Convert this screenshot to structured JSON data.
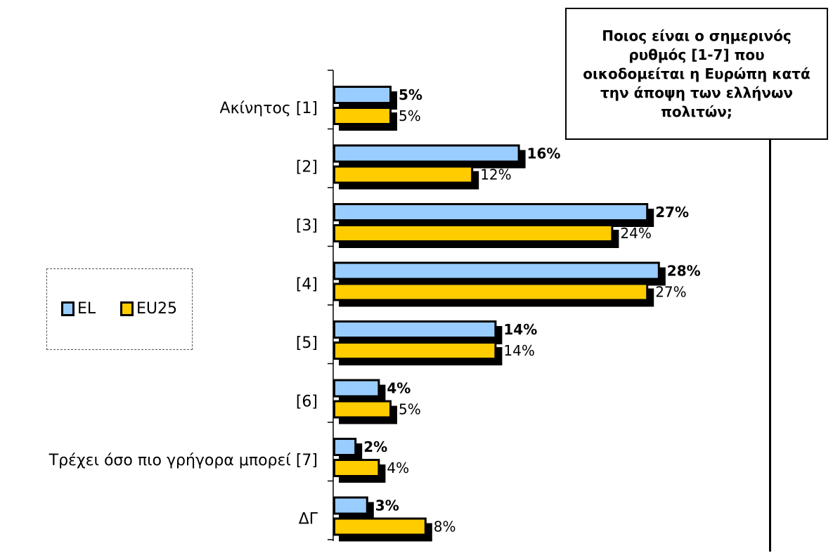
{
  "title": "Ποιος είναι ο σημερινός ρυθμός [1-7] που οικοδομείται η Ευρώπη κατά την άποψη των ελλήνων πολιτών;",
  "colors": {
    "EL": "#99ccff",
    "EU25": "#ffcc00",
    "outline": "#000000"
  },
  "legend": {
    "items": [
      "EL",
      "EU25"
    ],
    "position": "left-middle"
  },
  "chart_data": {
    "type": "bar",
    "orientation": "horizontal",
    "title": "Ποιος είναι ο σημερινός ρυθμός [1-7] που οικοδομείται η Ευρώπη κατά την άποψη των ελλήνων πολιτών;",
    "categories": [
      "Ακίνητος [1]",
      "[2]",
      "[3]",
      "[4]",
      "[5]",
      "[6]",
      "Τρέχει όσο πιο γρήγορα μπορεί [7]",
      "ΔΓ"
    ],
    "series": [
      {
        "name": "EL",
        "values": [
          5,
          16,
          27,
          28,
          14,
          4,
          2,
          3
        ],
        "labels": [
          "5%",
          "16%",
          "27%",
          "28%",
          "14%",
          "4%",
          "2%",
          "3%"
        ]
      },
      {
        "name": "EU25",
        "values": [
          5,
          12,
          24,
          27,
          14,
          5,
          4,
          8
        ],
        "labels": [
          "5%",
          "12%",
          "24%",
          "27%",
          "14%",
          "5%",
          "4%",
          "8%"
        ]
      }
    ],
    "xlim": [
      0,
      30
    ],
    "grid": false
  }
}
